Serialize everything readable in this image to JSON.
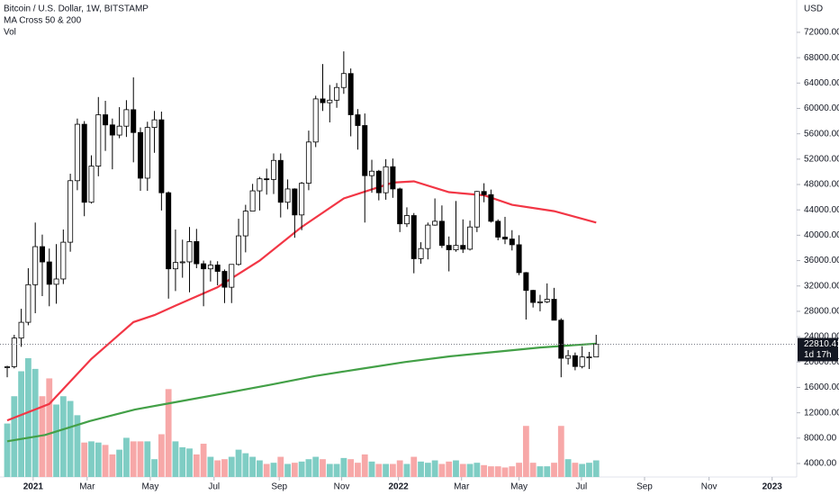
{
  "chart_data": {
    "type": "candlestick",
    "title": "Bitcoin / U.S. Dollar, 1W, BITSTAMP",
    "indicators": [
      "MA Cross 50 & 200",
      "Vol"
    ],
    "currency": "USD",
    "countdown": "1d 17h",
    "open": [
      19150,
      19270,
      23780,
      26270,
      32200,
      38200,
      35790,
      32260,
      33100,
      38900,
      48600,
      57500,
      45200,
      50900,
      59000,
      57400,
      55800,
      57200,
      59800,
      56200,
      49000,
      57000,
      58200,
      46700,
      34700,
      35700,
      35800,
      39000,
      35500,
      34700,
      35300,
      34300,
      31800,
      35400,
      39900,
      43800,
      47000,
      48900,
      48800,
      51800,
      45200,
      47300,
      43200,
      48200,
      54700,
      61500,
      60900,
      61300,
      63300,
      65500,
      59000,
      57300,
      49400,
      50100,
      46700,
      50800,
      47300,
      41800,
      43100,
      36300,
      37900,
      41600,
      42200,
      38400,
      37700,
      38400,
      37800,
      41300,
      46900,
      46400,
      42200,
      39700,
      39400,
      38500,
      34100,
      31300,
      29400,
      29500,
      29900,
      26600,
      20600,
      21000,
      19300,
      20800,
      20800
    ],
    "high": [
      19420,
      24300,
      28400,
      34800,
      42000,
      40100,
      37900,
      38600,
      40900,
      49700,
      58400,
      58000,
      52600,
      61800,
      61200,
      58400,
      60200,
      61300,
      64900,
      57000,
      57900,
      59600,
      59500,
      46900,
      40900,
      39300,
      41300,
      41000,
      36000,
      36000,
      35900,
      34600,
      35400,
      42600,
      44800,
      48100,
      49200,
      50500,
      52900,
      52900,
      48800,
      47400,
      48400,
      56500,
      62000,
      67000,
      63700,
      64000,
      69000,
      66300,
      59900,
      59200,
      51900,
      50300,
      52000,
      52100,
      47500,
      44400,
      43500,
      38900,
      42000,
      45800,
      44700,
      39800,
      45400,
      42500,
      42300,
      47000,
      48200,
      47200,
      42500,
      42900,
      40800,
      40000,
      34200,
      31400,
      30600,
      32400,
      31700,
      26900,
      21900,
      21500,
      22500,
      21600,
      24300
    ],
    "low": [
      17600,
      19000,
      22400,
      25800,
      27700,
      30400,
      28800,
      29200,
      32300,
      37400,
      47100,
      43000,
      45000,
      49300,
      53300,
      50400,
      55300,
      55500,
      51500,
      47000,
      47000,
      53000,
      43900,
      30000,
      31200,
      33300,
      31000,
      34800,
      28800,
      32700,
      32100,
      29300,
      29300,
      35200,
      37300,
      43800,
      43900,
      46400,
      46500,
      42800,
      44100,
      39600,
      40800,
      47100,
      53900,
      59600,
      57800,
      60100,
      62300,
      55600,
      53500,
      42000,
      46700,
      45500,
      45600,
      45900,
      40500,
      41300,
      34000,
      35500,
      36200,
      41500,
      38000,
      34300,
      37400,
      37200,
      37600,
      40500,
      45200,
      42000,
      39200,
      38600,
      37600,
      33700,
      26700,
      28600,
      28000,
      29300,
      26600,
      17600,
      19600,
      18700,
      19000,
      18900,
      20800
    ],
    "close": [
      19260,
      23780,
      26270,
      32200,
      38200,
      35790,
      32260,
      33100,
      38900,
      48600,
      57500,
      45200,
      50900,
      59000,
      57400,
      55800,
      57200,
      59800,
      56200,
      49000,
      57000,
      58200,
      46700,
      34700,
      35700,
      35800,
      39000,
      35500,
      34700,
      35300,
      34300,
      31800,
      35400,
      39900,
      43800,
      47000,
      48900,
      48800,
      51800,
      45200,
      47300,
      43200,
      48200,
      54700,
      61500,
      60900,
      61300,
      63300,
      65500,
      59000,
      57300,
      49400,
      50100,
      46700,
      50800,
      47300,
      41800,
      43100,
      36300,
      37900,
      41600,
      42200,
      38400,
      37700,
      38400,
      37800,
      41300,
      46900,
      46400,
      42200,
      39700,
      39400,
      38500,
      34100,
      31300,
      29400,
      29500,
      29900,
      26600,
      20600,
      21000,
      19300,
      20800,
      20800,
      22810.41
    ],
    "volume": [
      45,
      68,
      89,
      100,
      91,
      68,
      83,
      61,
      68,
      64,
      52,
      29,
      30,
      29,
      27,
      19,
      23,
      33,
      30,
      30,
      30,
      15,
      36,
      74,
      30,
      25,
      24,
      19,
      28,
      17,
      14,
      15,
      17,
      23,
      20,
      17,
      14,
      11,
      12,
      17,
      11,
      12,
      13,
      15,
      17,
      15,
      11,
      11,
      16,
      15,
      12,
      19,
      13,
      11,
      11,
      11,
      14,
      11,
      17,
      13,
      12,
      14,
      11,
      13,
      14,
      11,
      11,
      12,
      10,
      9,
      9,
      8,
      9,
      12,
      43,
      12,
      9,
      9,
      12,
      43,
      15,
      12,
      11,
      12,
      14
    ],
    "ma_fast": {
      "color": "#f23645",
      "x": [
        0,
        6,
        12,
        18,
        21,
        24,
        30,
        36,
        42,
        48,
        55,
        58,
        63,
        68,
        72,
        78,
        84
      ],
      "values": [
        10800,
        13400,
        20500,
        26300,
        27400,
        28900,
        31800,
        36000,
        41300,
        45800,
        48300,
        48500,
        46800,
        46300,
        44800,
        43800,
        42000
      ]
    },
    "ma_slow": {
      "color": "#43a047",
      "x": [
        0,
        5.4,
        11.8,
        18.2,
        24.6,
        31.1,
        37.5,
        43.9,
        50.3,
        56.7,
        63.2,
        69.6,
        76,
        84
      ],
      "values": [
        7500,
        8500,
        10700,
        12500,
        13800,
        15100,
        16400,
        17800,
        18900,
        20000,
        20900,
        21600,
        22300,
        22900
      ]
    },
    "up_color": "#ffffff",
    "down_color": "#000000",
    "vol_up_color": "#7fcdc4",
    "vol_down_color": "#f7a8a8",
    "xlim": [
      -1.03,
      112.6
    ],
    "xticks": [
      {
        "value": 3.7,
        "label": "2021"
      },
      {
        "value": 11.4,
        "label": "Mar"
      },
      {
        "value": 20.4,
        "label": "May"
      },
      {
        "value": 29.5,
        "label": "Jul"
      },
      {
        "value": 38.8,
        "label": "Sep"
      },
      {
        "value": 47.7,
        "label": "Nov"
      },
      {
        "value": 55.8,
        "label": "2022"
      },
      {
        "value": 64.8,
        "label": "Mar"
      },
      {
        "value": 73.0,
        "label": "May"
      },
      {
        "value": 81.9,
        "label": "Jul"
      },
      {
        "value": 90.9,
        "label": "Sep"
      },
      {
        "value": 100.1,
        "label": "Nov"
      },
      {
        "value": 109.1,
        "label": "2023"
      }
    ],
    "ylim": [
      1870,
      77100
    ],
    "yticks": [
      {
        "value": 4000,
        "label": "4000.00"
      },
      {
        "value": 8000,
        "label": "8000.00"
      },
      {
        "value": 12000,
        "label": "12000.00"
      },
      {
        "value": 16000,
        "label": "16000.00"
      },
      {
        "value": 20000,
        "label": "20000.00"
      },
      {
        "value": 24000,
        "label": "24000.00"
      },
      {
        "value": 28000,
        "label": "28000.00"
      },
      {
        "value": 32000,
        "label": "32000.00"
      },
      {
        "value": 36000,
        "label": "36000.00"
      },
      {
        "value": 40000,
        "label": "40000.00"
      },
      {
        "value": 44000,
        "label": "44000.00"
      },
      {
        "value": 48000,
        "label": "48000.00"
      },
      {
        "value": 52000,
        "label": "52000.00"
      },
      {
        "value": 56000,
        "label": "56000.00"
      },
      {
        "value": 60000,
        "label": "60000.00"
      },
      {
        "value": 64000,
        "label": "64000.00"
      },
      {
        "value": 68000,
        "label": "68000.00"
      },
      {
        "value": 72000,
        "label": "72000.00"
      }
    ]
  }
}
